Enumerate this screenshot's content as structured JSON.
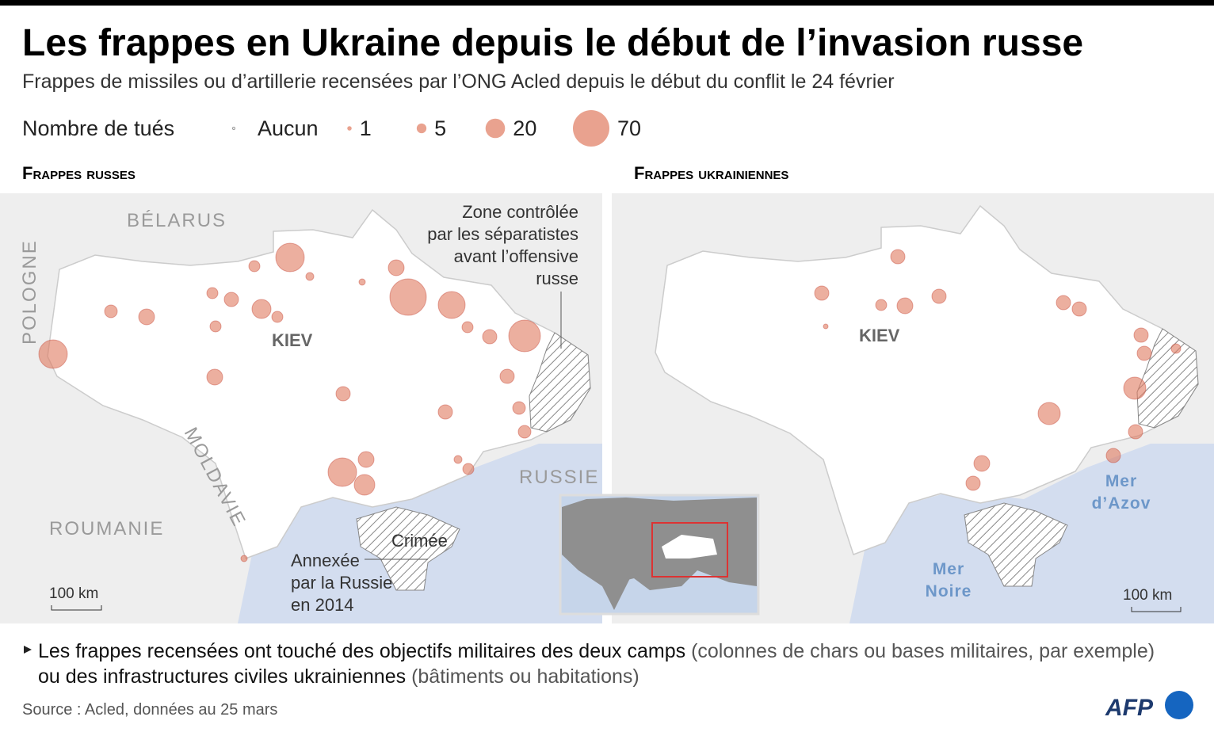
{
  "header": {
    "title": "Les frappes en Ukraine depuis le début de l’invasion russe",
    "subtitle": "Frappes de missiles ou d’artillerie recensées par l’ONG Acled depuis le début du conflit le 24 février"
  },
  "legend": {
    "title": "Nombre de tués",
    "none_label": "Aucun",
    "sizes": [
      1,
      5,
      20,
      70
    ]
  },
  "maps": [
    {
      "title": "Frappes russes",
      "labels": {
        "belarus": "BÉLARUS",
        "poland": "POLOGNE",
        "moldova": "MOLDAVIE",
        "romania": "ROUMANIE",
        "kiev": "KIEV",
        "russia": "RUSSIE",
        "separatist_zone": [
          "Zone contrôlée",
          "par les séparatistes",
          "avant l’offensive",
          "russe"
        ],
        "crimea": "Crimée",
        "annexed": [
          "Annexée",
          "par la Russie",
          "en 2014"
        ],
        "scale": "100 km"
      }
    },
    {
      "title": "Frappes ukrainiennes",
      "labels": {
        "kiev": "KIEV",
        "azov": [
          "Mer",
          "d’Azov"
        ],
        "black_sea": [
          "Mer",
          "Noire"
        ],
        "scale": "100 km"
      }
    }
  ],
  "footnote": {
    "line1_bold": "Les frappes recensées ont touché des objectifs militaires des deux camps",
    "line1_normal": "(colonnes de chars ou bases militaires, par exemple)",
    "line2_bold": "ou des infrastructures civiles ukrainiennes",
    "line2_normal": "(bâtiments ou habitations)"
  },
  "source": "Source : Acled, données au 25 mars",
  "logo": "AFP"
}
